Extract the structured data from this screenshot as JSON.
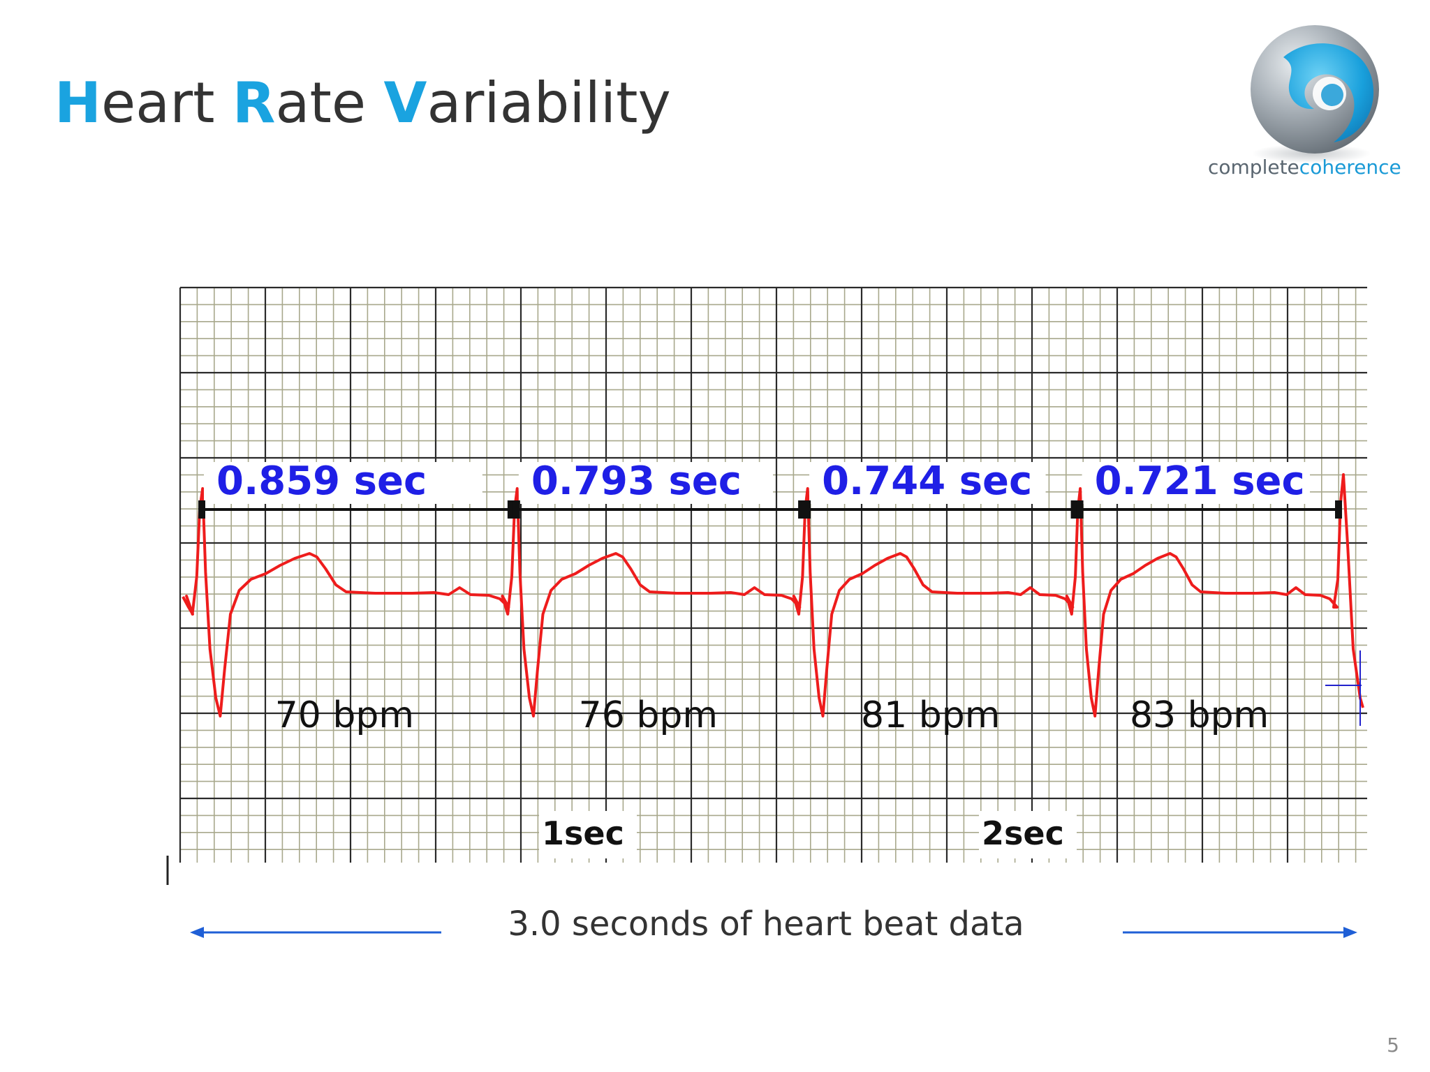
{
  "slide": {
    "title": {
      "words": [
        {
          "initial": "H",
          "rest": "eart "
        },
        {
          "initial": "R",
          "rest": "ate "
        },
        {
          "initial": "V",
          "rest": "ariability"
        }
      ],
      "accent_color": "#1aa3e0",
      "text_color": "#333333"
    },
    "logo": {
      "word_a": "complete",
      "word_b": "coherence",
      "word_a_color": "#5a6670",
      "word_b_color": "#1a9ad6"
    },
    "caption": "3.0 seconds of heart beat data",
    "page_number": "5"
  },
  "ecg": {
    "trace_color": "#ee1c1c",
    "interval_label_color": "#1f1fe6",
    "intervals": [
      {
        "label": "0.859 sec",
        "seconds": 0.859,
        "bpm_label": "70 bpm"
      },
      {
        "label": "0.793 sec",
        "seconds": 0.793,
        "bpm_label": "76 bpm"
      },
      {
        "label": "0.744 sec",
        "seconds": 0.744,
        "bpm_label": "81 bpm"
      },
      {
        "label": "0.721 sec",
        "seconds": 0.721,
        "bpm_label": "83 bpm"
      }
    ],
    "time_markers": [
      "1sec",
      "2sec"
    ]
  }
}
